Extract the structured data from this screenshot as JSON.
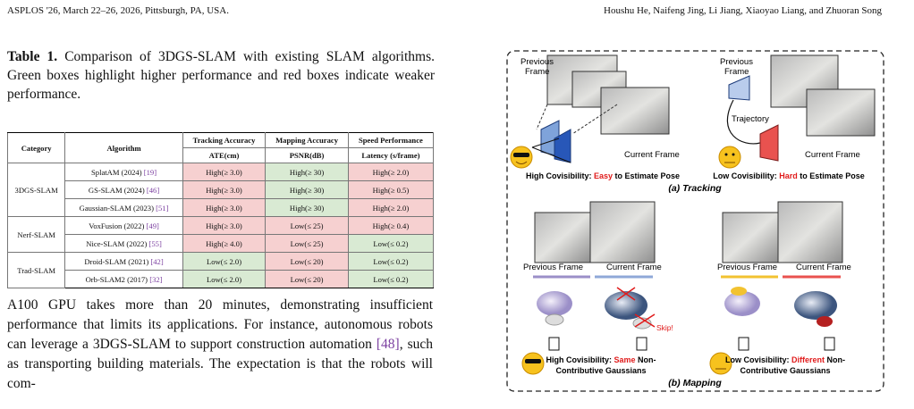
{
  "header": {
    "left": "ASPLOS '26, March 22–26, 2026, Pittsburgh, PA, USA.",
    "right": "Houshu He, Naifeng Jing, Li Jiang, Xiaoyao Liang, and Zhuoran Song"
  },
  "table_caption": {
    "label": "Table 1.",
    "text": "Comparison of 3DGS-SLAM with existing SLAM algorithms. Green boxes highlight higher performance and red boxes indicate weaker performance."
  },
  "table": {
    "header_top": [
      "Category",
      "Algorithm",
      "Tracking Accuracy",
      "Mapping Accuracy",
      "Speed Performance"
    ],
    "header_sub": [
      "ATE(cm)",
      "PSNR(dB)",
      "Latency (s/frame)"
    ],
    "good_color": "#d9ead3",
    "bad_color": "#f6d0d0",
    "groups": [
      {
        "category": "3DGS-SLAM",
        "rows": [
          {
            "algorithm": "SplatAM (2024)",
            "ref": "[19]",
            "cells": [
              {
                "text": "High(≥ 3.0)",
                "good": false
              },
              {
                "text": "High(≥ 30)",
                "good": true
              },
              {
                "text": "High(≥ 2.0)",
                "good": false
              }
            ]
          },
          {
            "algorithm": "GS-SLAM (2024)",
            "ref": "[46]",
            "cells": [
              {
                "text": "High(≥ 3.0)",
                "good": false
              },
              {
                "text": "High(≥ 30)",
                "good": true
              },
              {
                "text": "High(≥ 0.5)",
                "good": false
              }
            ]
          },
          {
            "algorithm": "Gaussian-SLAM (2023)",
            "ref": "[51]",
            "cells": [
              {
                "text": "High(≥ 3.0)",
                "good": false
              },
              {
                "text": "High(≥ 30)",
                "good": true
              },
              {
                "text": "High(≥ 2.0)",
                "good": false
              }
            ]
          }
        ]
      },
      {
        "category": "Nerf-SLAM",
        "rows": [
          {
            "algorithm": "VoxFusion (2022)",
            "ref": "[49]",
            "cells": [
              {
                "text": "High(≥ 3.0)",
                "good": false
              },
              {
                "text": "Low(≤ 25)",
                "good": false
              },
              {
                "text": "High(≥ 0.4)",
                "good": false
              }
            ]
          },
          {
            "algorithm": "Nice-SLAM (2022)",
            "ref": "[55]",
            "cells": [
              {
                "text": "High(≥ 4.0)",
                "good": false
              },
              {
                "text": "Low(≤ 25)",
                "good": false
              },
              {
                "text": "Low(≤ 0.2)",
                "good": true
              }
            ]
          }
        ]
      },
      {
        "category": "Trad-SLAM",
        "rows": [
          {
            "algorithm": "Droid-SLAM (2021)",
            "ref": "[42]",
            "cells": [
              {
                "text": "Low(≤ 2.0)",
                "good": true
              },
              {
                "text": "Low(≤ 20)",
                "good": false
              },
              {
                "text": "Low(≤ 0.2)",
                "good": true
              }
            ]
          },
          {
            "algorithm": "Orb-SLAM2 (2017)",
            "ref": "[32]",
            "cells": [
              {
                "text": "Low(≤ 2.0)",
                "good": true
              },
              {
                "text": "Low(≤ 20)",
                "good": false
              },
              {
                "text": "Low(≤ 0.2)",
                "good": true
              }
            ]
          }
        ]
      }
    ]
  },
  "paragraph": {
    "before": "A100 GPU takes more than 20 minutes, demonstrating insufficient performance that limits its applications. For instance, autonomous robots can leverage a 3DGS-SLAM to support construction automation ",
    "ref": "[48]",
    "after": ", such as transporting building materials. The expectation is that the robots will com-"
  },
  "figure": {
    "tracking_left": {
      "previous": [
        "Previous",
        "Frame"
      ],
      "current": "Current Frame",
      "caption": [
        "High Covisibility: ",
        "Easy",
        " to Estimate Pose"
      ]
    },
    "tracking_right": {
      "previous": [
        "Previous",
        "Frame"
      ],
      "trajectory": "Trajectory",
      "current": "Current Frame",
      "caption": [
        "Low Covisibility: ",
        "Hard",
        " to Estimate Pose"
      ]
    },
    "tracking_label": "(a) Tracking",
    "mapping_left": {
      "previous": "Previous Frame",
      "current": "Current Frame",
      "skip": "Skip!",
      "caption": [
        "High Covisibility: ",
        "Same",
        " Non-"
      ],
      "caption_line2": "Contributive Gaussians"
    },
    "mapping_right": {
      "previous": "Previous Frame",
      "current": "Current Frame",
      "caption": [
        "Low Covisibility: ",
        "Different",
        " Non-"
      ],
      "caption_line2": "Contributive Gaussians"
    },
    "mapping_label": "(b) Mapping"
  }
}
